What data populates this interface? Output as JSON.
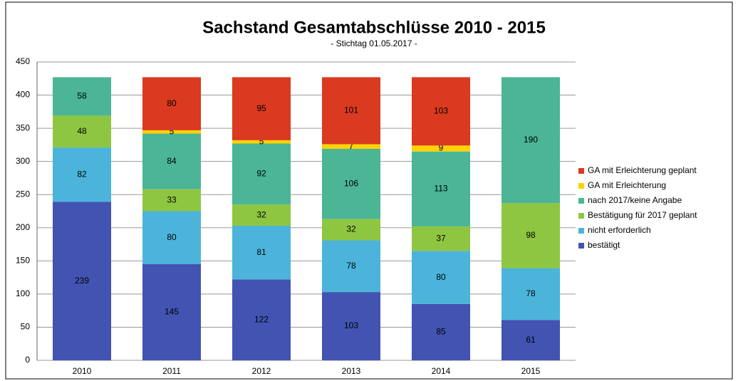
{
  "chart_data": {
    "type": "stacked_bar",
    "title": "Sachstand Gesamtabschlüsse 2010 - 2015",
    "subtitle": "- Stichtag 01.05.2017 -",
    "categories": [
      "2010",
      "2011",
      "2012",
      "2013",
      "2014",
      "2015"
    ],
    "series": [
      {
        "name": "bestätigt",
        "color": "#4253b2",
        "values": [
          239,
          145,
          122,
          103,
          85,
          61
        ]
      },
      {
        "name": "nicht erforderlich",
        "color": "#4cb4da",
        "values": [
          82,
          80,
          81,
          78,
          80,
          78
        ]
      },
      {
        "name": "Bestätigung für 2017 geplant",
        "color": "#8fc641",
        "values": [
          48,
          33,
          32,
          32,
          37,
          98
        ]
      },
      {
        "name": "nach 2017/keine Angabe",
        "color": "#4bb596",
        "values": [
          58,
          84,
          92,
          106,
          113,
          190
        ]
      },
      {
        "name": "GA mit Erleichterung",
        "color": "#ffd200",
        "values": [
          null,
          5,
          5,
          7,
          9,
          null
        ]
      },
      {
        "name": "GA mit Erleichterung geplant",
        "color": "#d93a20",
        "values": [
          null,
          80,
          95,
          101,
          103,
          null
        ]
      }
    ],
    "ylim": [
      0,
      450
    ],
    "yticks": [
      0,
      50,
      100,
      150,
      200,
      250,
      300,
      350,
      400,
      450
    ],
    "grid": true,
    "legend": "right"
  }
}
